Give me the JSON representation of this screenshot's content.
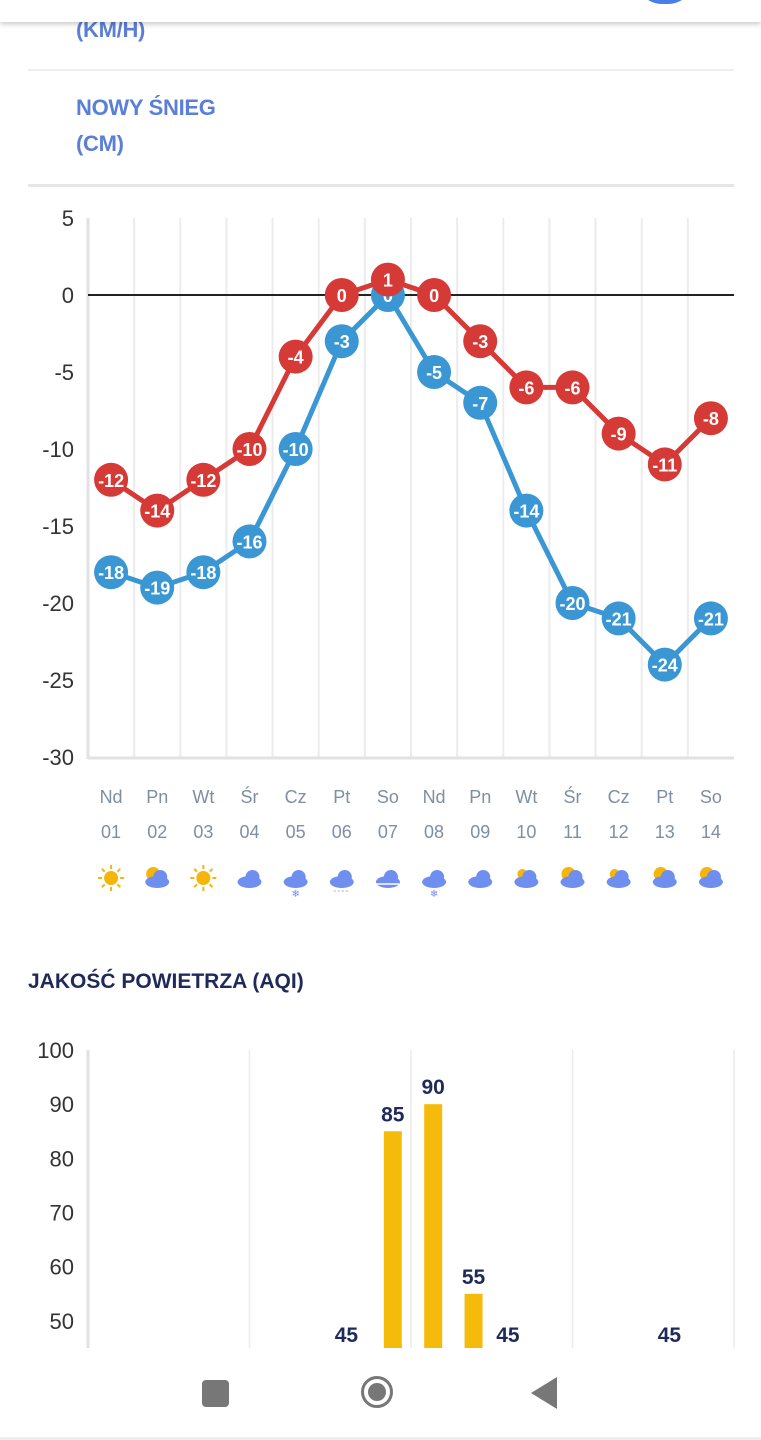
{
  "rows": {
    "wind_unit": "(KM/H)",
    "snow_label": "NOWY ŚNIEG",
    "snow_unit": "(CM)"
  },
  "colors": {
    "max_temp": "#d63a37",
    "min_temp": "#3a97d4",
    "aqi_bar": "#f5bb0b",
    "label_blue": "#5b7fd6",
    "title_navy": "#1f2a5a"
  },
  "days": [
    {
      "dow": "Nd",
      "date": "01",
      "icon": "sunny-icon"
    },
    {
      "dow": "Pn",
      "date": "02",
      "icon": "partly-sunny-icon"
    },
    {
      "dow": "Wt",
      "date": "03",
      "icon": "sunny-icon"
    },
    {
      "dow": "Śr",
      "date": "04",
      "icon": "cloud-icon"
    },
    {
      "dow": "Cz",
      "date": "05",
      "icon": "snow-cloud-icon"
    },
    {
      "dow": "Pt",
      "date": "06",
      "icon": "rain-cloud-icon"
    },
    {
      "dow": "So",
      "date": "07",
      "icon": "fog-icon"
    },
    {
      "dow": "Nd",
      "date": "08",
      "icon": "snow-cloud-icon"
    },
    {
      "dow": "Pn",
      "date": "09",
      "icon": "cloud-icon"
    },
    {
      "dow": "Wt",
      "date": "10",
      "icon": "mostly-cloudy-icon"
    },
    {
      "dow": "Śr",
      "date": "11",
      "icon": "partly-cloudy-icon"
    },
    {
      "dow": "Cz",
      "date": "12",
      "icon": "mostly-cloudy-icon"
    },
    {
      "dow": "Pt",
      "date": "13",
      "icon": "partly-sunny-icon"
    },
    {
      "dow": "So",
      "date": "14",
      "icon": "partly-cloudy-icon"
    }
  ],
  "aqi": {
    "title": "JAKOŚĆ POWIETRZA (AQI)"
  },
  "chart_data": [
    {
      "type": "line",
      "title": "",
      "xlabel": "",
      "ylabel": "",
      "categories": [
        "01",
        "02",
        "03",
        "04",
        "05",
        "06",
        "07",
        "08",
        "09",
        "10",
        "11",
        "12",
        "13",
        "14"
      ],
      "ylim": [
        -30,
        5
      ],
      "yticks": [
        5,
        0,
        -5,
        -10,
        -15,
        -20,
        -25,
        -30
      ],
      "yticklabels": [
        "5",
        "0",
        "-5",
        "-10",
        "-15",
        "-20",
        "-25",
        "-30"
      ],
      "grid": "vertical",
      "reference_line": 0,
      "series": [
        {
          "name": "max",
          "values": [
            -12,
            -14,
            -12,
            -10,
            -4,
            0,
            1,
            0,
            -3,
            -6,
            -6,
            -9,
            -11,
            -8
          ]
        },
        {
          "name": "min",
          "values": [
            -18,
            -19,
            -18,
            -16,
            -10,
            -3,
            0,
            -5,
            -7,
            -14,
            -20,
            -21,
            -24,
            -21
          ]
        }
      ]
    },
    {
      "type": "bar",
      "title": "JAKOŚĆ POWIETRZA (AQI)",
      "ylim": [
        45,
        100
      ],
      "yticks": [
        100,
        90,
        80,
        70,
        60,
        50
      ],
      "yticklabels": [
        "100",
        "90",
        "80",
        "70",
        "60",
        "50"
      ],
      "grid": "vertical",
      "bars": [
        {
          "slot": 7,
          "value": 45
        },
        {
          "slot": 8,
          "value": 85
        },
        {
          "slot": 9,
          "value": 90
        },
        {
          "slot": 10,
          "value": 55
        },
        {
          "slot": 11,
          "value": 45
        },
        {
          "slot": 15,
          "value": 45
        }
      ],
      "value_labels": [
        "45",
        "85",
        "90",
        "55",
        "45",
        "45"
      ]
    }
  ]
}
